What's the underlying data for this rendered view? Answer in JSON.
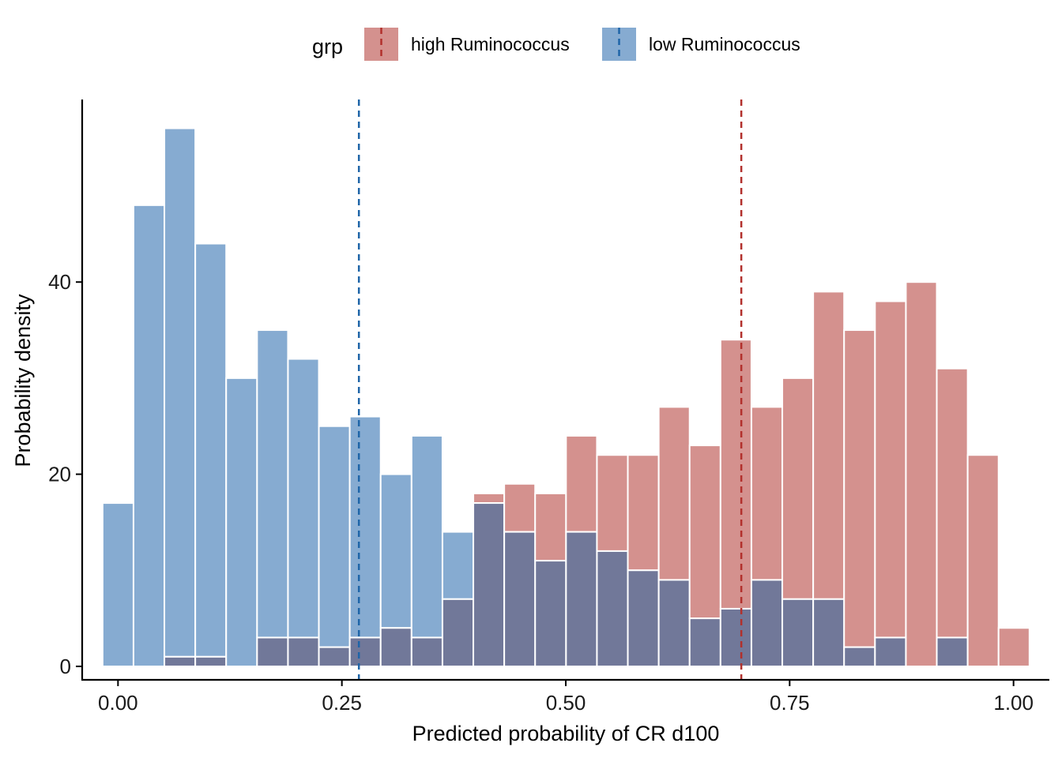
{
  "chart_data": {
    "type": "bar",
    "subtype": "overlapping-histogram",
    "xlabel": "Predicted probability of CR d100",
    "ylabel": "Probability density",
    "xlim": [
      -0.04,
      1.04
    ],
    "ylim": [
      -1.4,
      59
    ],
    "x_ticks": [
      0,
      0.25,
      0.5,
      0.75,
      1
    ],
    "x_tick_labels": [
      "0.00",
      "0.25",
      "0.50",
      "0.75",
      "1.00"
    ],
    "y_ticks": [
      0,
      20,
      40
    ],
    "y_tick_labels": [
      "0",
      "20",
      "40"
    ],
    "grid": false,
    "legend": {
      "title": "grp",
      "position": "top",
      "entries": [
        "high Ruminococcus",
        "low Ruminococcus"
      ]
    },
    "bin_width": 0.0345,
    "bin_start": -0.0172,
    "series": [
      {
        "name": "high Ruminococcus",
        "color": "#d4918e",
        "line_color": "#b2302c",
        "mean_line": 0.696,
        "values": [
          0,
          0,
          1,
          1,
          0,
          3,
          3,
          2,
          3,
          4,
          3,
          7,
          18,
          19,
          18,
          24,
          22,
          22,
          27,
          23,
          34,
          27,
          30,
          39,
          35,
          38,
          40,
          31,
          22,
          4
        ]
      },
      {
        "name": "low Ruminococcus",
        "color": "#86abd1",
        "line_color": "#1f65a8",
        "mean_line": 0.269,
        "values": [
          17,
          48,
          56,
          44,
          30,
          35,
          32,
          25,
          26,
          20,
          24,
          14,
          17,
          14,
          11,
          14,
          12,
          10,
          9,
          5,
          6,
          9,
          7,
          7,
          2,
          3,
          0,
          3,
          0,
          0
        ]
      }
    ],
    "overlap_color": "#717899"
  }
}
